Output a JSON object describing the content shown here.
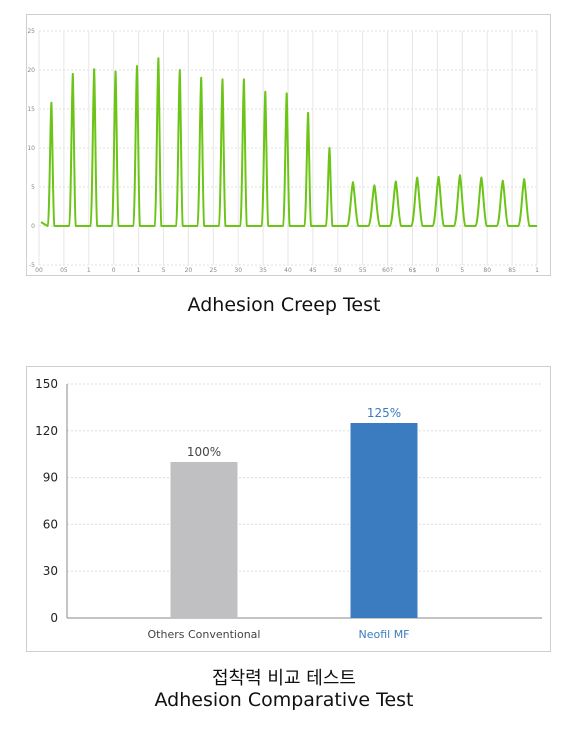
{
  "chart_data": [
    {
      "type": "line",
      "title": "Adhesion Creep Test",
      "ylim": [
        -5,
        25
      ],
      "y_ticks": [
        "-5",
        "0",
        "5",
        "10",
        "15",
        "20",
        "25"
      ],
      "x_tick_labels": [
        "00",
        "05",
        "1",
        "0",
        "1",
        "5",
        "20",
        "25",
        "30",
        "35",
        "40",
        "45",
        "50",
        "55",
        "60?",
        "6$",
        "0",
        "5",
        "80",
        "85",
        "1"
      ],
      "grid": true,
      "line_color": "#6cc417",
      "series": [
        {
          "x": [
            1,
            2,
            3,
            4,
            5,
            6,
            7,
            8,
            9,
            10,
            11,
            12,
            13,
            14,
            15,
            16,
            17,
            18,
            19,
            20,
            21,
            22,
            23
          ],
          "values": [
            15.8,
            19.5,
            20.1,
            19.8,
            20.5,
            21.5,
            20.0,
            19.0,
            18.8,
            18.8,
            17.2,
            17.0,
            14.5,
            10.0,
            5.6,
            5.2,
            5.7,
            6.2,
            6.3,
            6.5,
            6.2,
            5.8,
            6.0
          ]
        }
      ]
    },
    {
      "type": "bar",
      "title": "접착력 비교 테스트 Adhesion Comparative Test",
      "categories": [
        "Others Conventional",
        "Neofil MF"
      ],
      "values": [
        100,
        125
      ],
      "data_labels": [
        "100%",
        "125%"
      ],
      "colors": [
        "#c0bfc1",
        "#3b7cc0"
      ],
      "label_colors": [
        "#444444",
        "#3b7cc0"
      ],
      "ylim": [
        0,
        150
      ],
      "y_ticks": [
        "0",
        "30",
        "60",
        "90",
        "120",
        "150"
      ],
      "grid": true
    }
  ],
  "captions": {
    "creep": "Adhesion Creep Test",
    "compare_ko": "접착력 비교 테스트",
    "compare_en": "Adhesion Comparative Test"
  }
}
